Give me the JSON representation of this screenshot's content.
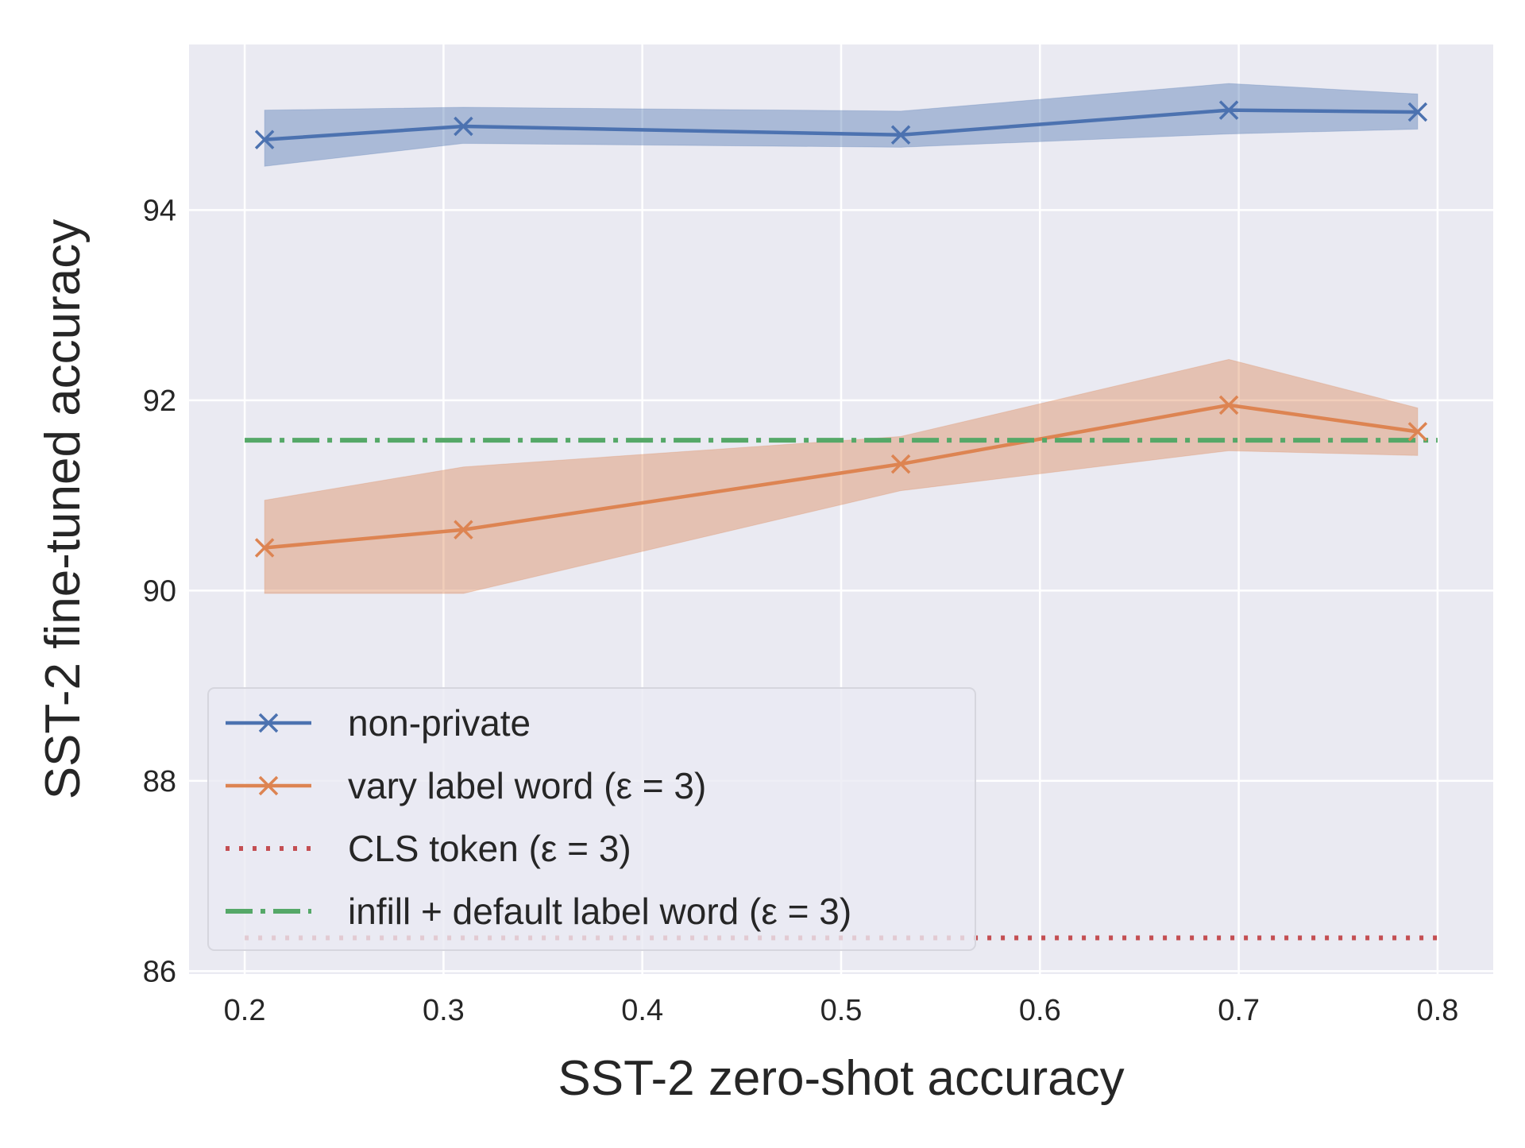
{
  "chart_data": {
    "type": "line",
    "title": "",
    "xlabel": "SST-2 zero-shot accuracy",
    "ylabel": "SST-2 fine-tuned accuracy",
    "xlim": [
      0.172,
      0.828
    ],
    "ylim": [
      85.97,
      95.74
    ],
    "xticks": [
      0.2,
      0.3,
      0.4,
      0.5,
      0.6,
      0.7,
      0.8
    ],
    "xtick_labels": [
      "0.2",
      "0.3",
      "0.4",
      "0.5",
      "0.6",
      "0.7",
      "0.8"
    ],
    "yticks": [
      86,
      88,
      90,
      92,
      94
    ],
    "ytick_labels": [
      "86",
      "88",
      "90",
      "92",
      "94"
    ],
    "grid": true,
    "legend_position": "lower-left",
    "series": [
      {
        "name": "non-private",
        "color": "#4c72b0",
        "marker": "x",
        "linestyle": "solid",
        "x": [
          0.21,
          0.31,
          0.53,
          0.695,
          0.79
        ],
        "y": [
          94.74,
          94.88,
          94.79,
          95.05,
          95.03
        ],
        "lower": [
          94.46,
          94.7,
          94.66,
          94.8,
          94.85
        ],
        "upper": [
          95.05,
          95.08,
          95.04,
          95.33,
          95.22
        ]
      },
      {
        "name": "vary label word (ε = 3)",
        "color": "#dd8452",
        "marker": "x",
        "linestyle": "solid",
        "x": [
          0.21,
          0.31,
          0.53,
          0.695,
          0.79
        ],
        "y": [
          90.45,
          90.64,
          91.33,
          91.95,
          91.67
        ],
        "lower": [
          89.97,
          89.97,
          91.05,
          91.47,
          91.42
        ],
        "upper": [
          90.95,
          91.3,
          91.62,
          92.43,
          91.92
        ]
      },
      {
        "name": "CLS token (ε = 3)",
        "color": "#c44e52",
        "linestyle": "dotted",
        "x": [
          0.2,
          0.8
        ],
        "y": [
          86.35,
          86.35
        ]
      },
      {
        "name": "infill + default label word (ε = 3)",
        "color": "#55a868",
        "linestyle": "dashdot",
        "x": [
          0.2,
          0.8
        ],
        "y": [
          91.58,
          91.58
        ]
      }
    ]
  }
}
